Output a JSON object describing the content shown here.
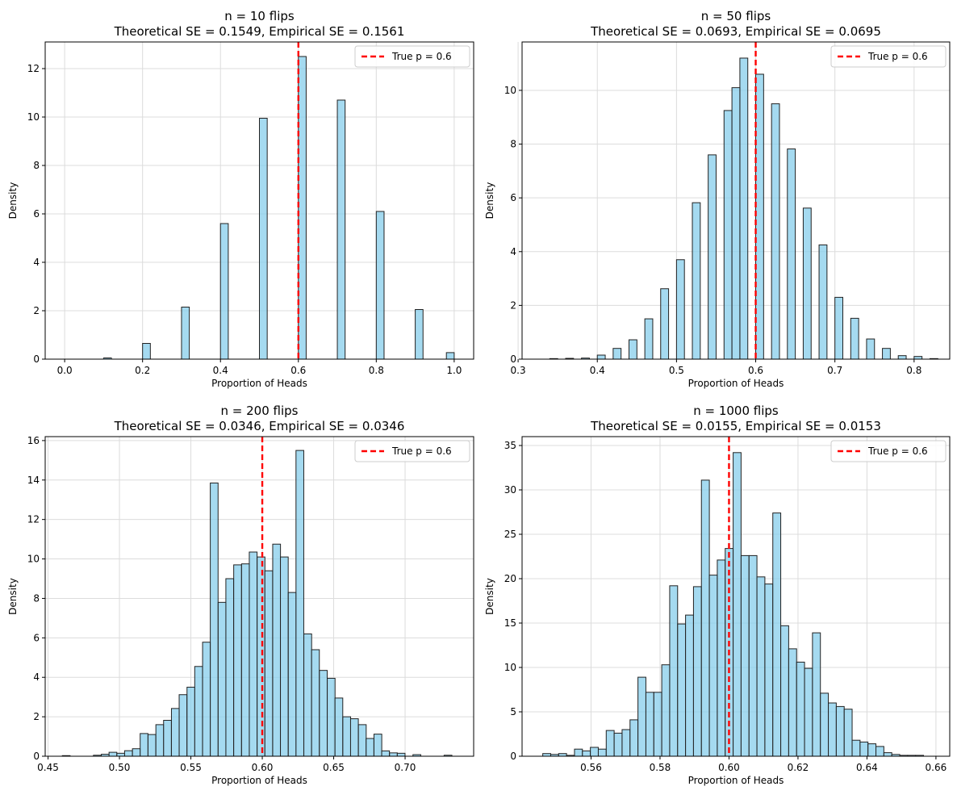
{
  "chart_data": [
    {
      "type": "bar",
      "title": "n = 10 flips",
      "subtitle": "Theoretical SE = 0.1549, Empirical SE = 0.1561",
      "xlabel": "Proportion of Heads",
      "ylabel": "Density",
      "xlim": [
        -0.05,
        1.05
      ],
      "ylim": [
        0,
        13.1
      ],
      "xticks": [
        "0.0",
        "0.2",
        "0.4",
        "0.6",
        "0.8",
        "1.0"
      ],
      "yticks": [
        "0",
        "2",
        "4",
        "6",
        "8",
        "10",
        "12"
      ],
      "bin_width": 0.02,
      "bin_starts": [
        0.1,
        0.2,
        0.3,
        0.4,
        0.5,
        0.6,
        0.7,
        0.8,
        0.9,
        0.98
      ],
      "values": [
        0.05,
        0.65,
        2.15,
        5.6,
        9.95,
        12.5,
        10.7,
        6.1,
        2.05,
        0.27
      ],
      "reference_line": {
        "x": 0.6,
        "label": "True p = 0.6",
        "color": "#ff0000"
      },
      "legend": "top-right",
      "grid": true
    },
    {
      "type": "bar",
      "title": "n = 50 flips",
      "subtitle": "Theoretical SE = 0.0693, Empirical SE = 0.0695",
      "xlabel": "Proportion of Heads",
      "ylabel": "Density",
      "xlim": [
        0.305,
        0.845
      ],
      "ylim": [
        0,
        11.8
      ],
      "xticks": [
        "0.3",
        "0.4",
        "0.5",
        "0.6",
        "0.7",
        "0.8"
      ],
      "yticks": [
        "0",
        "2",
        "4",
        "6",
        "8",
        "10"
      ],
      "bin_width": 0.01,
      "bin_starts": [
        0.34,
        0.36,
        0.38,
        0.4,
        0.42,
        0.44,
        0.46,
        0.48,
        0.5,
        0.52,
        0.54,
        0.56,
        0.58,
        0.6,
        0.62,
        0.64,
        0.66,
        0.68,
        0.7,
        0.72,
        0.74,
        0.76,
        0.78,
        0.8,
        0.82
      ],
      "values": [
        0.02,
        0.03,
        0.04,
        0.15,
        0.4,
        0.72,
        1.5,
        2.62,
        3.7,
        5.82,
        7.6,
        9.25,
        11.2,
        10.6,
        9.5,
        7.82,
        5.62,
        4.25,
        2.3,
        1.52,
        0.75,
        0.4,
        0.13,
        0.1,
        0.02
      ],
      "extra_bin": {
        "start": 0.57,
        "value": 10.1
      },
      "reference_line": {
        "x": 0.6,
        "label": "True p = 0.6",
        "color": "#ff0000"
      },
      "legend": "top-right",
      "grid": true
    },
    {
      "type": "bar",
      "title": "n = 200 flips",
      "subtitle": "Theoretical SE = 0.0346, Empirical SE = 0.0346",
      "xlabel": "Proportion of Heads",
      "ylabel": "Density",
      "xlim": [
        0.448,
        0.748
      ],
      "ylim": [
        0,
        16.2
      ],
      "xticks": [
        "0.45",
        "0.50",
        "0.55",
        "0.60",
        "0.65",
        "0.70"
      ],
      "yticks": [
        "0",
        "2",
        "4",
        "6",
        "8",
        "10",
        "12",
        "14",
        "16"
      ],
      "bin_width": 0.005454,
      "bin_starts": [
        0.46,
        0.4818,
        0.4873,
        0.4927,
        0.4982,
        0.5036,
        0.5091,
        0.5145,
        0.52,
        0.5255,
        0.5309,
        0.5364,
        0.5418,
        0.5473,
        0.5527,
        0.5582,
        0.5636,
        0.5691,
        0.5745,
        0.58,
        0.5855,
        0.5909,
        0.5964,
        0.6018,
        0.6073,
        0.6127,
        0.6182,
        0.6236,
        0.6291,
        0.6345,
        0.64,
        0.6455,
        0.6509,
        0.6564,
        0.6618,
        0.6673,
        0.6727,
        0.6782,
        0.6836,
        0.6891,
        0.6945,
        0.7055,
        0.7273
      ],
      "values": [
        0.03,
        0.05,
        0.1,
        0.2,
        0.15,
        0.28,
        0.38,
        1.15,
        1.1,
        1.6,
        1.82,
        2.42,
        3.12,
        3.5,
        4.55,
        5.78,
        13.85,
        7.8,
        9.0,
        9.7,
        9.75,
        10.35,
        10.1,
        9.4,
        10.75,
        10.1,
        8.3,
        15.5,
        6.2,
        5.4,
        4.35,
        3.95,
        2.95,
        2.0,
        1.9,
        1.6,
        0.9,
        1.12,
        0.27,
        0.17,
        0.15,
        0.08,
        0.05
      ],
      "reference_line": {
        "x": 0.6,
        "label": "True p = 0.6",
        "color": "#ff0000"
      },
      "legend": "top-right",
      "grid": true
    },
    {
      "type": "bar",
      "title": "n = 1000 flips",
      "subtitle": "Theoretical SE = 0.0155, Empirical SE = 0.0153",
      "xlabel": "Proportion of Heads",
      "ylabel": "Density",
      "xlim": [
        0.54,
        0.664
      ],
      "ylim": [
        0,
        36
      ],
      "xticks": [
        "0.56",
        "0.58",
        "0.60",
        "0.62",
        "0.64",
        "0.66"
      ],
      "yticks": [
        "0",
        "5",
        "10",
        "15",
        "20",
        "25",
        "30",
        "35"
      ],
      "bin_width": 0.0023,
      "bin_starts": [
        0.546,
        0.5483,
        0.5506,
        0.5529,
        0.5552,
        0.5575,
        0.5598,
        0.5621,
        0.5644,
        0.5667,
        0.569,
        0.5713,
        0.5736,
        0.5759,
        0.5782,
        0.5805,
        0.5828,
        0.5851,
        0.5874,
        0.5897,
        0.592,
        0.5943,
        0.5966,
        0.5989,
        0.6012,
        0.6035,
        0.6058,
        0.6081,
        0.6104,
        0.6127,
        0.615,
        0.6173,
        0.6196,
        0.6219,
        0.6242,
        0.6265,
        0.6288,
        0.6311,
        0.6334,
        0.6357,
        0.638,
        0.6403,
        0.6426,
        0.6449,
        0.6472,
        0.6495,
        0.6518,
        0.6541
      ],
      "values": [
        0.3,
        0.2,
        0.3,
        0.1,
        0.8,
        0.6,
        1.0,
        0.8,
        2.9,
        2.6,
        3.0,
        4.1,
        8.9,
        7.2,
        7.2,
        10.3,
        19.2,
        14.9,
        15.9,
        19.1,
        31.1,
        20.4,
        22.1,
        23.4,
        34.2,
        22.6,
        22.6,
        20.2,
        19.4,
        27.4,
        14.7,
        12.1,
        10.6,
        9.9,
        13.9,
        7.1,
        6.0,
        5.6,
        5.3,
        1.8,
        1.6,
        1.4,
        1.1,
        0.4,
        0.2,
        0.1,
        0.1,
        0.1
      ],
      "reference_line": {
        "x": 0.6,
        "label": "True p = 0.6",
        "color": "#ff0000"
      },
      "legend": "top-right",
      "grid": true
    }
  ]
}
